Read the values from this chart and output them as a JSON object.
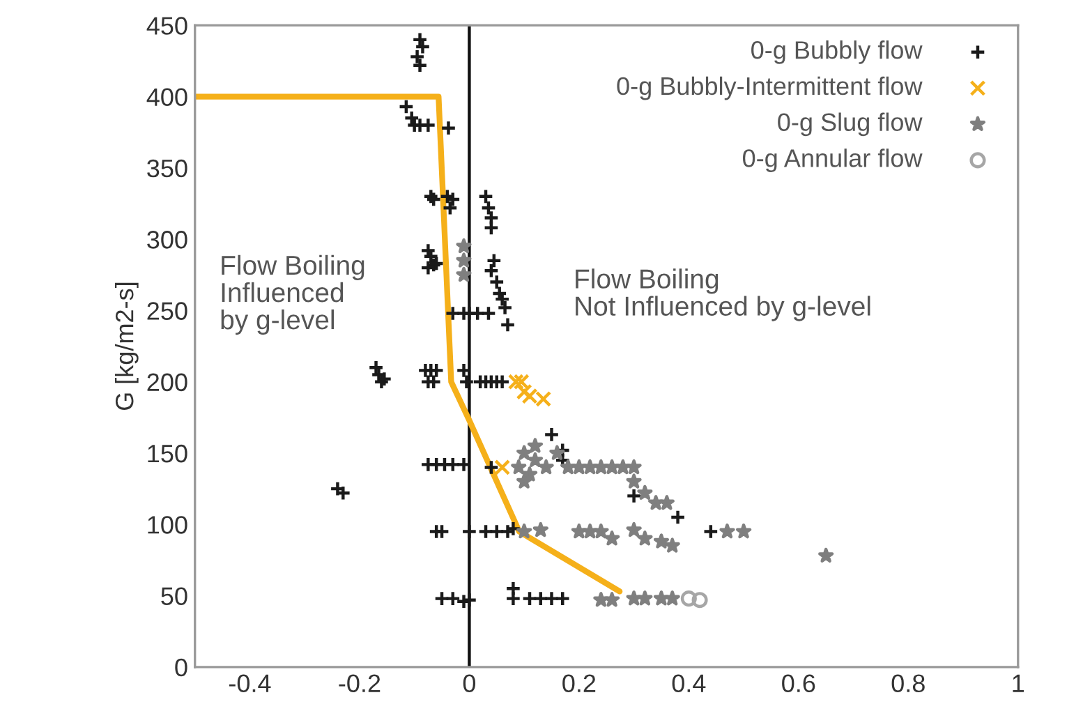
{
  "chart_data": {
    "type": "scatter",
    "ylabel": "G [kg/m2-s]",
    "xlim": [
      -0.5,
      1
    ],
    "ylim": [
      0,
      450
    ],
    "xticks": [
      -0.4,
      -0.2,
      0,
      0.2,
      0.4,
      0.6,
      0.8,
      1
    ],
    "yticks": [
      0,
      50,
      100,
      150,
      200,
      250,
      300,
      350,
      400,
      450
    ],
    "grid": false,
    "legend": "top right",
    "annotations": [
      "Flow Boiling\nInfluenced\nby g-level",
      "Flow Boiling\nNot Influenced by g-level"
    ],
    "ref_lines": [
      {
        "axis": "x",
        "value": 0,
        "color": "#111111"
      }
    ],
    "series": [
      {
        "name": "0-g Bubbly flow",
        "color": "#1a1a1a",
        "marker": "plus",
        "x": [
          -0.09,
          -0.085,
          -0.095,
          -0.09,
          -0.115,
          -0.105,
          -0.1,
          -0.09,
          -0.075,
          -0.038,
          -0.07,
          -0.065,
          -0.04,
          -0.03,
          -0.035,
          0.03,
          0.035,
          0.04,
          0.04,
          -0.075,
          -0.07,
          -0.065,
          -0.075,
          -0.06,
          0.045,
          0.04,
          0.05,
          0.055,
          0.06,
          0.065,
          -0.03,
          -0.01,
          0,
          0.015,
          0.035,
          0.07,
          -0.17,
          -0.165,
          -0.16,
          -0.155,
          -0.08,
          -0.07,
          -0.06,
          -0.075,
          -0.065,
          -0.01,
          -0.005,
          0.02,
          0.03,
          0.04,
          0.05,
          0.06,
          -0.075,
          -0.06,
          -0.045,
          -0.03,
          -0.01,
          0.04,
          -0.24,
          -0.23,
          0.15,
          0.17,
          0.17,
          0.3,
          0.38,
          0.44,
          -0.06,
          -0.05,
          0,
          0.03,
          0.05,
          0.07,
          0.08,
          -0.05,
          -0.03,
          -0.01,
          0,
          0.08,
          0.08,
          0.11,
          0.13,
          0.15,
          0.17
        ],
        "values": [
          440,
          435,
          428,
          422,
          393,
          385,
          380,
          380,
          380,
          378,
          330,
          328,
          330,
          328,
          322,
          330,
          322,
          315,
          308,
          292,
          288,
          282,
          280,
          283,
          285,
          278,
          270,
          262,
          258,
          252,
          248,
          248,
          248,
          248,
          248,
          240,
          210,
          205,
          200,
          202,
          208,
          208,
          208,
          200,
          200,
          208,
          200,
          200,
          200,
          200,
          200,
          200,
          142,
          142,
          142,
          142,
          142,
          140,
          125,
          122,
          163,
          152,
          145,
          120,
          105,
          95,
          95,
          95,
          95,
          95,
          95,
          95,
          97,
          48,
          48,
          46,
          47,
          55,
          48,
          48,
          48,
          48,
          48
        ]
      },
      {
        "name": "0-g Bubbly-Intermittent flow",
        "color": "#f5b01a",
        "marker": "cross",
        "x": [
          0.085,
          0.095,
          0.1,
          0.11,
          0.135,
          0.06
        ],
        "values": [
          200,
          200,
          193,
          190,
          188,
          140
        ]
      },
      {
        "name": "0-g Slug flow",
        "color": "#7f7f7f",
        "marker": "star",
        "x": [
          -0.01,
          -0.01,
          -0.01,
          0.09,
          0.1,
          0.11,
          0.12,
          0.1,
          0.12,
          0.14,
          0.16,
          0.18,
          0.2,
          0.22,
          0.24,
          0.26,
          0.28,
          0.3,
          0.3,
          0.32,
          0.34,
          0.36,
          0.1,
          0.13,
          0.2,
          0.22,
          0.24,
          0.26,
          0.3,
          0.32,
          0.35,
          0.37,
          0.47,
          0.5,
          0.65,
          0.24,
          0.26,
          0.3,
          0.32,
          0.35,
          0.37
        ],
        "values": [
          295,
          285,
          275,
          140,
          150,
          135,
          145,
          130,
          155,
          140,
          150,
          140,
          140,
          140,
          140,
          140,
          140,
          140,
          130,
          122,
          115,
          115,
          95,
          96,
          95,
          95,
          95,
          90,
          96,
          90,
          88,
          85,
          95,
          95,
          78,
          47,
          47,
          48,
          48,
          48,
          48
        ]
      },
      {
        "name": "0-g Annular flow",
        "color": "#a6a6a6",
        "marker": "circle",
        "x": [
          0.4,
          0.42
        ],
        "values": [
          48,
          47
        ]
      },
      {
        "type": "line",
        "color": "#f5b01a",
        "x": [
          -0.5,
          -0.056,
          -0.033,
          0,
          0.091,
          0.274
        ],
        "values": [
          400,
          400,
          200,
          173,
          95,
          53
        ]
      }
    ]
  }
}
